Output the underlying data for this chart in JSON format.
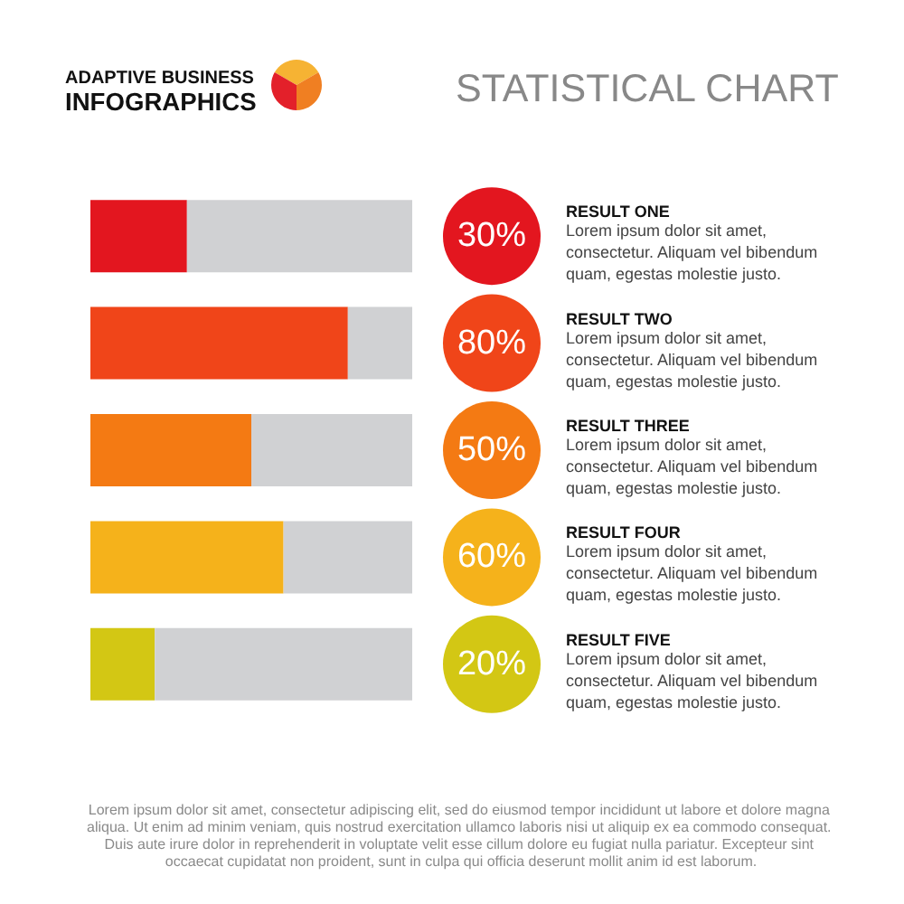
{
  "chart_data": {
    "type": "bar",
    "title": "STATISTICAL CHART",
    "subtitle": "ADAPTIVE BUSINESS\nINFOGRAPHICS",
    "orientation": "horizontal",
    "stacked": true,
    "categories": [
      "RESULT ONE",
      "RESULT TWO",
      "RESULT THREE",
      "RESULT FOUR",
      "RESULT FIVE"
    ],
    "series": [
      {
        "values": [
          30,
          80,
          50,
          60,
          20
        ],
        "colors": [
          "#e3161f",
          "#f04519",
          "#f47a13",
          "#f5b21b",
          "#d3c714"
        ],
        "value_labels": [
          "30%",
          "80%",
          "50%",
          "60%",
          "20%"
        ]
      },
      {
        "values": [
          70,
          20,
          50,
          40,
          80
        ],
        "color": "#d0d1d3"
      }
    ],
    "xlim": [
      0,
      100
    ],
    "tick_labels": "y",
    "annotations": [
      "Lorem ipsum dolor sit amet, consectetur. Aliquam vel bibendum quam, egestas molestie justo.",
      "Lorem ipsum dolor sit amet, consectetur. Aliquam vel bibendum quam, egestas molestie justo.",
      "Lorem ipsum dolor sit amet, consectetur. Aliquam vel bibendum quam, egestas molestie justo.",
      "Lorem ipsum dolor sit amet, consectetur. Aliquam vel bibendum quam, egestas molestie justo.",
      "Lorem ipsum dolor sit amet, consectetur. Aliquam vel bibendum quam, egestas molestie justo.",
      "Lorem ipsum dolor sit amet, consectetur adipiscing elit, sed do eiusmod tempor incididunt ut labore et dolore magna aliqua. Ut enim ad minim veniam, quis nostrud exercitation ullamco laboris nisi ut aliquip ex ea commodo consequat. Duis aute irure dolor in reprehenderit in voluptate velit esse cillum dolore eu fugiat nulla pariatur. Excepteur sint occaecat cupidatat non proident, sunt in culpa qui officia deserunt mollit anim id est laborum."
    ]
  }
}
